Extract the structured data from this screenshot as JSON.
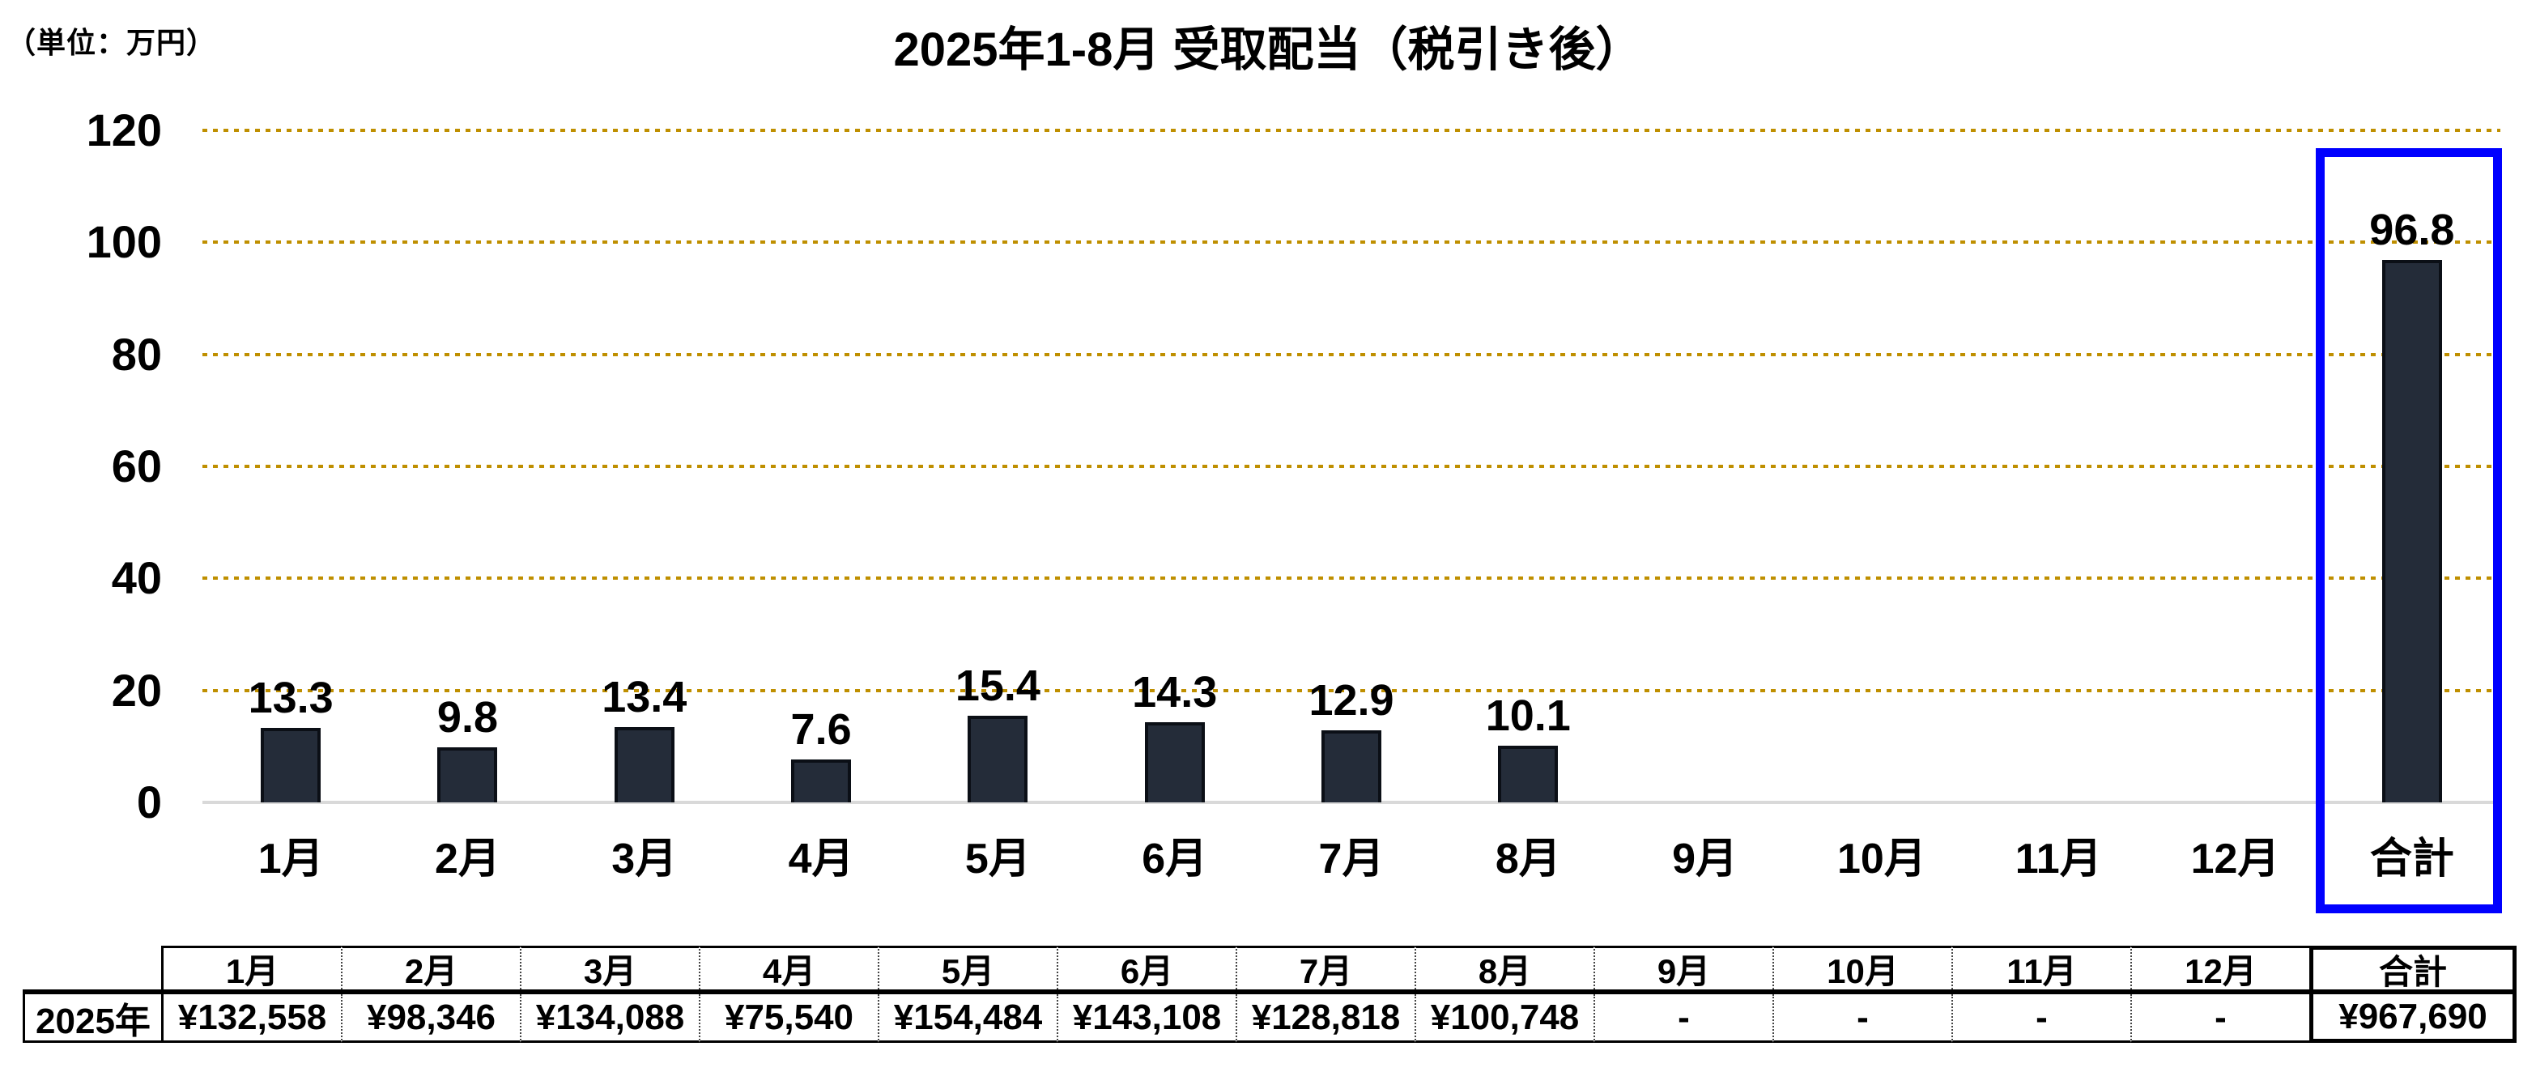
{
  "chart_data": {
    "type": "bar",
    "title": "2025年1-8月 受取配当（税引き後）",
    "unit_label": "（単位：万円）",
    "categories": [
      "1月",
      "2月",
      "3月",
      "4月",
      "5月",
      "6月",
      "7月",
      "8月",
      "9月",
      "10月",
      "11月",
      "12月",
      "合計"
    ],
    "values": [
      13.3,
      9.8,
      13.4,
      7.6,
      15.4,
      14.3,
      12.9,
      10.1,
      null,
      null,
      null,
      null,
      96.8
    ],
    "ylim": [
      0,
      120
    ],
    "yticks": [
      0,
      20,
      40,
      60,
      80,
      100,
      120
    ],
    "grid": {
      "horizontal": true,
      "style": "dotted"
    },
    "legend": "none",
    "highlight": {
      "category": "合計",
      "style": "blue outline box"
    },
    "colors": {
      "bar_fill": "#242C39",
      "bar_border": "#0B0F16",
      "grid_color": "#BF8F00",
      "axis_line": "#D9D9D9",
      "highlight_box": "#0000FF",
      "text": "#000000"
    }
  },
  "table": {
    "corner_label": "",
    "row_label": "2025年",
    "columns": [
      "1月",
      "2月",
      "3月",
      "4月",
      "5月",
      "6月",
      "7月",
      "8月",
      "9月",
      "10月",
      "11月",
      "12月",
      "合計"
    ],
    "values": [
      "¥132,558",
      "¥98,346",
      "¥134,088",
      "¥75,540",
      "¥154,484",
      "¥143,108",
      "¥128,818",
      "¥100,748",
      "-",
      "-",
      "-",
      "-",
      "¥967,690"
    ]
  }
}
